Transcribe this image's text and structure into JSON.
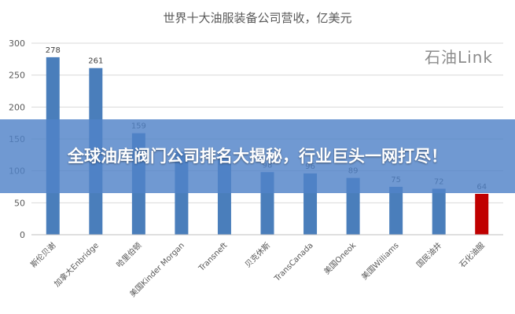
{
  "chart_data": {
    "type": "bar",
    "title": "世界十大油服装备公司营收，亿美元",
    "categories": [
      "斯伦贝谢",
      "加拿大Enbridge",
      "哈里伯顿",
      "美国Kinder Morgan",
      "Transneft",
      "贝克休斯",
      "TransCanada",
      "美国Oneok",
      "美国Williams",
      "国民油井",
      "石化油服"
    ],
    "values": [
      278,
      261,
      159,
      130,
      125,
      98,
      96,
      89,
      75,
      72,
      64
    ],
    "data_labels": [
      "278",
      "261",
      "159",
      "",
      "",
      "98",
      "96",
      "89",
      "75",
      "72",
      "64"
    ],
    "ylim": [
      0,
      300
    ],
    "yticks": [
      0,
      50,
      100,
      150,
      200,
      250,
      300
    ],
    "grid": true,
    "colors": {
      "bar": "#4a7ebb",
      "highlight": "#c00000",
      "highlight_index": 10,
      "grid": "#d9d9d9"
    }
  },
  "watermark": "石油Link",
  "banner": {
    "text": "全球油库阀门公司排名大揭秘，行业巨头一网打尽！"
  }
}
